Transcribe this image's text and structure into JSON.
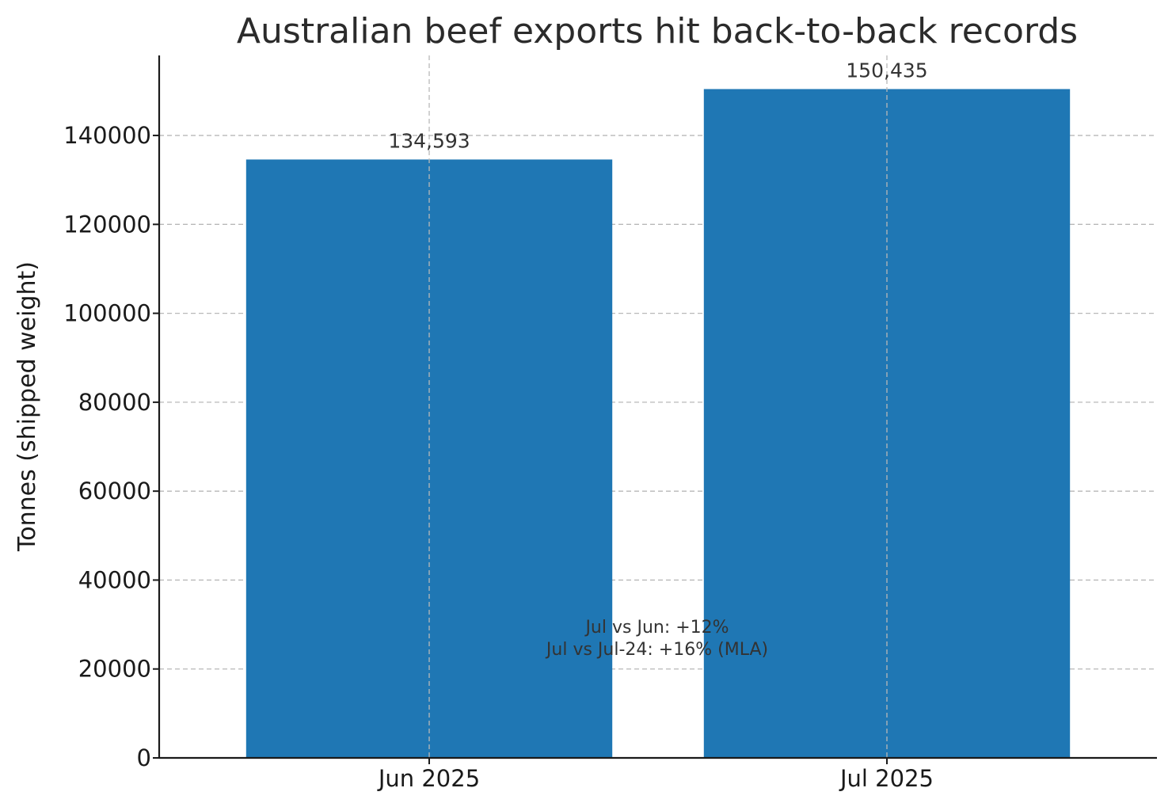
{
  "chart_data": {
    "type": "bar",
    "title": "Australian beef exports hit back-to-back records",
    "xlabel": "",
    "ylabel": "Tonnes (shipped weight)",
    "categories": [
      "Jun 2025",
      "Jul 2025"
    ],
    "values": [
      134593,
      150435
    ],
    "value_labels": [
      "134,593",
      "150,435"
    ],
    "ylim": [
      0,
      158000
    ],
    "yticks": [
      0,
      20000,
      40000,
      60000,
      80000,
      100000,
      120000,
      140000
    ],
    "ytick_labels": [
      "0",
      "20000",
      "40000",
      "60000",
      "80000",
      "100000",
      "120000",
      "140000"
    ],
    "grid": true,
    "bar_color": "#1f77b4",
    "annotation": [
      "Jul vs Jun: +12%",
      "Jul vs Jul-24: +16% (MLA)"
    ]
  }
}
